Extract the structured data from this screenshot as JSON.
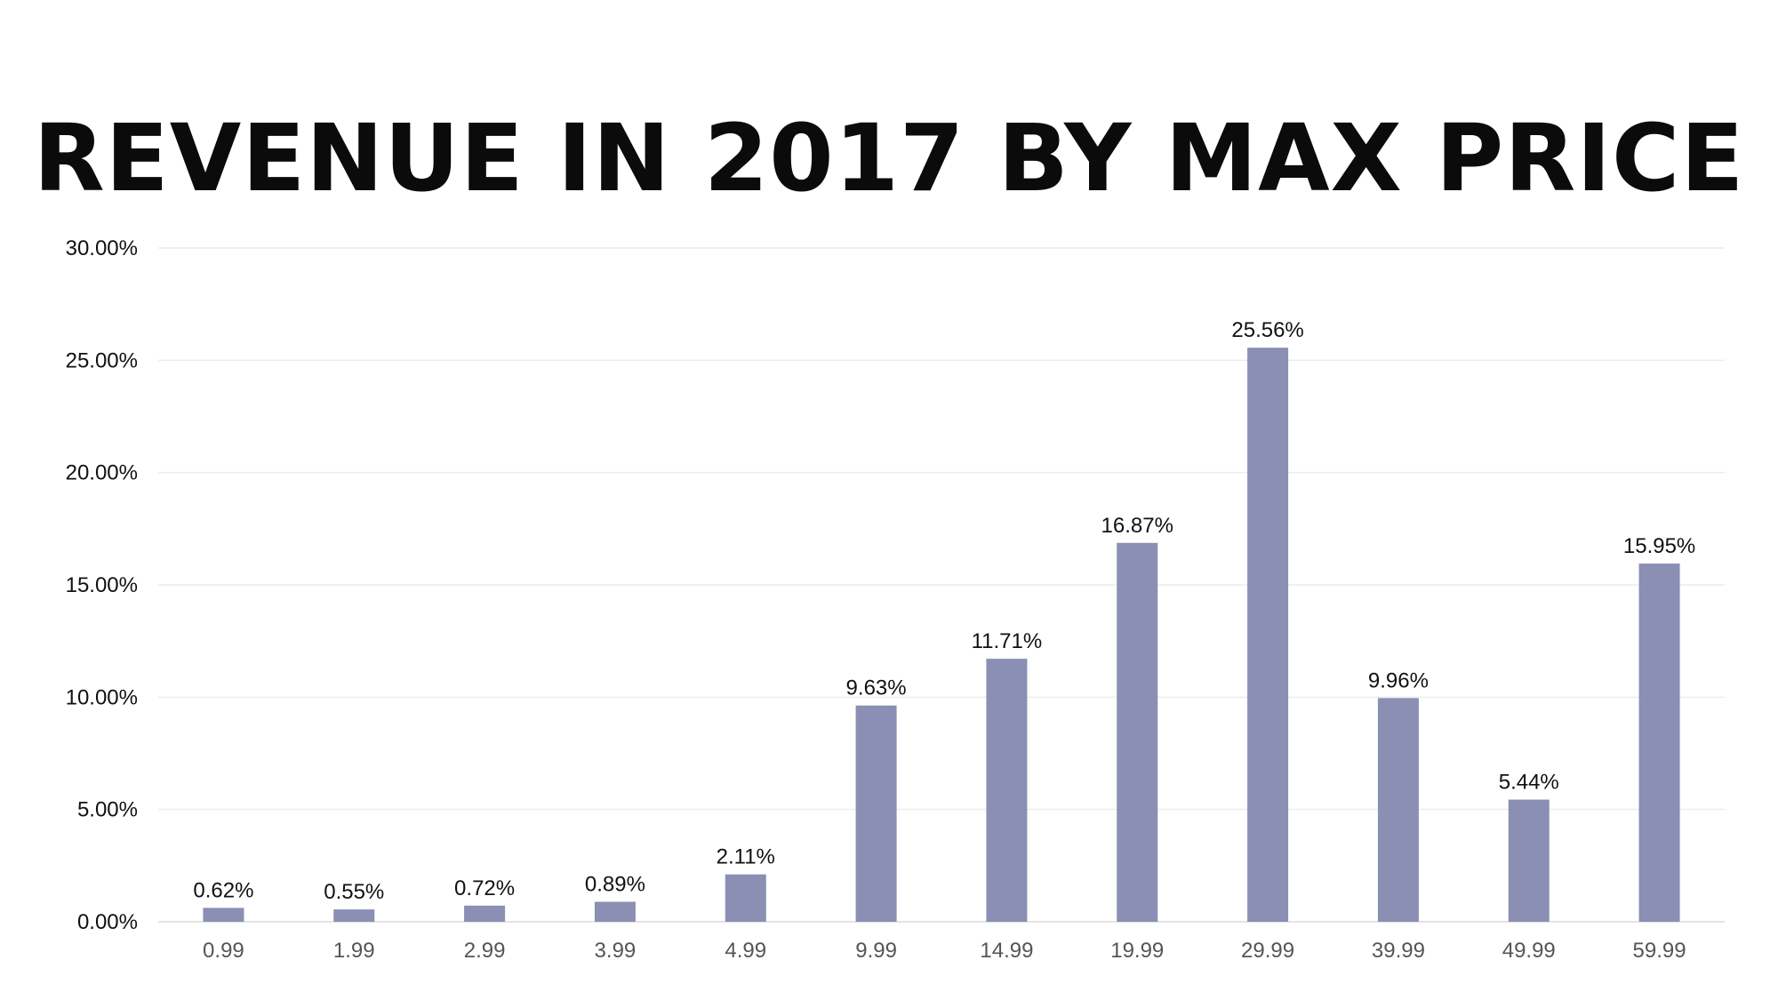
{
  "chart_data": {
    "type": "bar",
    "title": "REVENUE IN 2017 BY MAX PRICE",
    "categories": [
      "0.99",
      "1.99",
      "2.99",
      "3.99",
      "4.99",
      "9.99",
      "14.99",
      "19.99",
      "29.99",
      "39.99",
      "49.99",
      "59.99"
    ],
    "values": [
      0.62,
      0.55,
      0.72,
      0.89,
      2.11,
      9.63,
      11.71,
      16.87,
      25.56,
      9.96,
      5.44,
      15.95
    ],
    "data_labels": [
      "0.62%",
      "0.55%",
      "0.72%",
      "0.89%",
      "2.11%",
      "9.63%",
      "11.71%",
      "16.87%",
      "25.56%",
      "9.96%",
      "5.44%",
      "15.95%"
    ],
    "y_tick_labels": [
      "0.00%",
      "5.00%",
      "10.00%",
      "15.00%",
      "20.00%",
      "25.00%",
      "30.00%"
    ],
    "y_ticks": [
      0,
      5,
      10,
      15,
      20,
      25,
      30
    ],
    "ylim": [
      0,
      30
    ],
    "xlabel": "",
    "ylabel": "",
    "grid": true,
    "legend": "none",
    "bar_color": "#8a8fb3"
  }
}
